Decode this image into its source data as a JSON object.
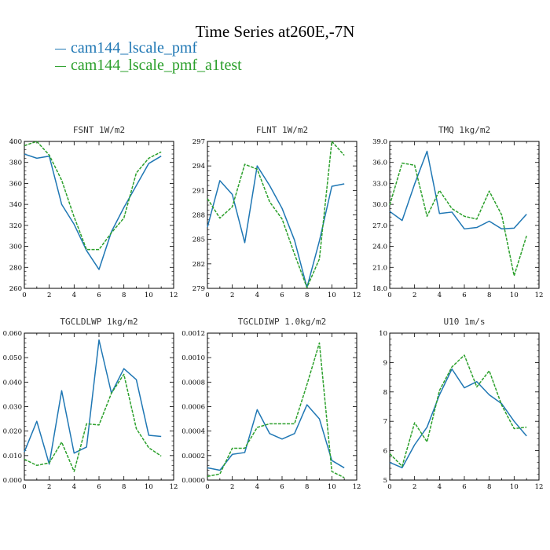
{
  "title": "Time Series at260E,-7N",
  "legend": [
    {
      "name": "cam144_lscale_pmf",
      "color": "#1f77b4",
      "dash": false
    },
    {
      "name": "cam144_lscale_pmf_a1test",
      "color": "#2ca02c",
      "dash": true
    }
  ],
  "chart_data": [
    {
      "type": "line",
      "title": "FSNT   1W/m2",
      "x": [
        0,
        1,
        2,
        3,
        4,
        5,
        6,
        7,
        8,
        9,
        10,
        11
      ],
      "xlim": [
        0,
        12
      ],
      "xticks": [
        0,
        2,
        4,
        6,
        8,
        10,
        12
      ],
      "ylim": [
        260,
        400
      ],
      "yticks": [
        "260",
        "280",
        "300",
        "320",
        "340",
        "360",
        "380",
        "400"
      ],
      "series": [
        {
          "name": "cam144_lscale_pmf",
          "values": [
            388,
            384,
            386,
            340,
            321,
            296,
            278,
            314,
            337,
            358,
            379,
            386
          ]
        },
        {
          "name": "cam144_lscale_pmf_a1test",
          "values": [
            396,
            400,
            387,
            363,
            328,
            297,
            297,
            313,
            327,
            370,
            384,
            390
          ]
        }
      ]
    },
    {
      "type": "line",
      "title": "FLNT   1W/m2",
      "x": [
        0,
        1,
        2,
        3,
        4,
        5,
        6,
        7,
        8,
        9,
        10,
        11
      ],
      "xlim": [
        0,
        12
      ],
      "xticks": [
        0,
        2,
        4,
        6,
        8,
        10,
        12
      ],
      "ylim": [
        279,
        297
      ],
      "yticks": [
        "279",
        "282",
        "285",
        "288",
        "291",
        "294",
        "297"
      ],
      "series": [
        {
          "name": "cam144_lscale_pmf",
          "values": [
            286.5,
            292.2,
            290.5,
            284.6,
            294.0,
            291.6,
            288.8,
            284.9,
            279.1,
            284.8,
            291.5,
            291.8
          ]
        },
        {
          "name": "cam144_lscale_pmf_a1test",
          "values": [
            290.0,
            287.6,
            289.0,
            294.2,
            293.6,
            289.6,
            287.5,
            283.2,
            279.1,
            282.6,
            297.0,
            295.3
          ]
        }
      ]
    },
    {
      "type": "line",
      "title": "TMQ   1kg/m2",
      "x": [
        0,
        1,
        2,
        3,
        4,
        5,
        6,
        7,
        8,
        9,
        10,
        11
      ],
      "xlim": [
        0,
        12
      ],
      "xticks": [
        0,
        2,
        4,
        6,
        8,
        10,
        12
      ],
      "ylim": [
        18.0,
        39.0
      ],
      "yticks": [
        "18.0",
        "21.0",
        "24.0",
        "27.0",
        "30.0",
        "33.0",
        "36.0",
        "39.0"
      ],
      "series": [
        {
          "name": "cam144_lscale_pmf",
          "values": [
            29.0,
            27.7,
            32.9,
            37.6,
            28.7,
            28.9,
            26.5,
            26.7,
            27.6,
            26.5,
            26.6,
            28.6
          ]
        },
        {
          "name": "cam144_lscale_pmf_a1test",
          "values": [
            29.9,
            35.9,
            35.6,
            28.3,
            32.0,
            29.4,
            28.3,
            27.9,
            31.9,
            28.5,
            19.8,
            25.5
          ]
        }
      ]
    },
    {
      "type": "line",
      "title": "TGCLDLWP   1kg/m2",
      "x": [
        0,
        1,
        2,
        3,
        4,
        5,
        6,
        7,
        8,
        9,
        10,
        11
      ],
      "xlim": [
        0,
        12
      ],
      "xticks": [
        0,
        2,
        4,
        6,
        8,
        10,
        12
      ],
      "ylim": [
        0.0,
        0.06
      ],
      "yticks": [
        "0.000",
        "0.010",
        "0.020",
        "0.030",
        "0.040",
        "0.050",
        "0.060"
      ],
      "series": [
        {
          "name": "cam144_lscale_pmf",
          "values": [
            0.0115,
            0.024,
            0.0065,
            0.0365,
            0.011,
            0.0135,
            0.0572,
            0.0355,
            0.0455,
            0.041,
            0.0183,
            0.0178
          ]
        },
        {
          "name": "cam144_lscale_pmf_a1test",
          "values": [
            0.0085,
            0.006,
            0.007,
            0.0155,
            0.0035,
            0.023,
            0.0225,
            0.0355,
            0.0432,
            0.021,
            0.0132,
            0.0098
          ]
        }
      ]
    },
    {
      "type": "line",
      "title": "TGCLDIWP   1.0kg/m2",
      "x": [
        0,
        1,
        2,
        3,
        4,
        5,
        6,
        7,
        8,
        9,
        10,
        11
      ],
      "xlim": [
        0,
        12
      ],
      "xticks": [
        0,
        2,
        4,
        6,
        8,
        10,
        12
      ],
      "ylim": [
        0.0,
        0.0012
      ],
      "yticks": [
        "0.0000",
        "0.0002",
        "0.0004",
        "0.0006",
        "0.0008",
        "0.0010",
        "0.0012"
      ],
      "series": [
        {
          "name": "cam144_lscale_pmf",
          "values": [
            0.0001,
            8e-05,
            0.00021,
            0.000225,
            0.000575,
            0.00038,
            0.000335,
            0.00038,
            0.000615,
            0.0005,
            0.00016,
            0.0001
          ]
        },
        {
          "name": "cam144_lscale_pmf_a1test",
          "values": [
            3e-05,
            5e-05,
            0.00026,
            0.00026,
            0.00043,
            0.00046,
            0.00046,
            0.00046,
            0.00078,
            0.00112,
            7e-05,
            2e-05
          ]
        }
      ]
    },
    {
      "type": "line",
      "title": "U10   1m/s",
      "x": [
        0,
        1,
        2,
        3,
        4,
        5,
        6,
        7,
        8,
        9,
        10,
        11
      ],
      "xlim": [
        0,
        12
      ],
      "xticks": [
        0,
        2,
        4,
        6,
        8,
        10,
        12
      ],
      "ylim": [
        5,
        10
      ],
      "yticks": [
        "5",
        "6",
        "7",
        "8",
        "9",
        "10"
      ],
      "series": [
        {
          "name": "cam144_lscale_pmf",
          "values": [
            5.6,
            5.42,
            6.2,
            6.8,
            7.9,
            8.78,
            8.14,
            8.35,
            7.9,
            7.6,
            7.0,
            6.5
          ]
        },
        {
          "name": "cam144_lscale_pmf_a1test",
          "values": [
            5.9,
            5.47,
            6.95,
            6.3,
            8.05,
            8.85,
            9.25,
            8.17,
            8.72,
            7.55,
            6.75,
            6.8
          ]
        }
      ]
    }
  ]
}
